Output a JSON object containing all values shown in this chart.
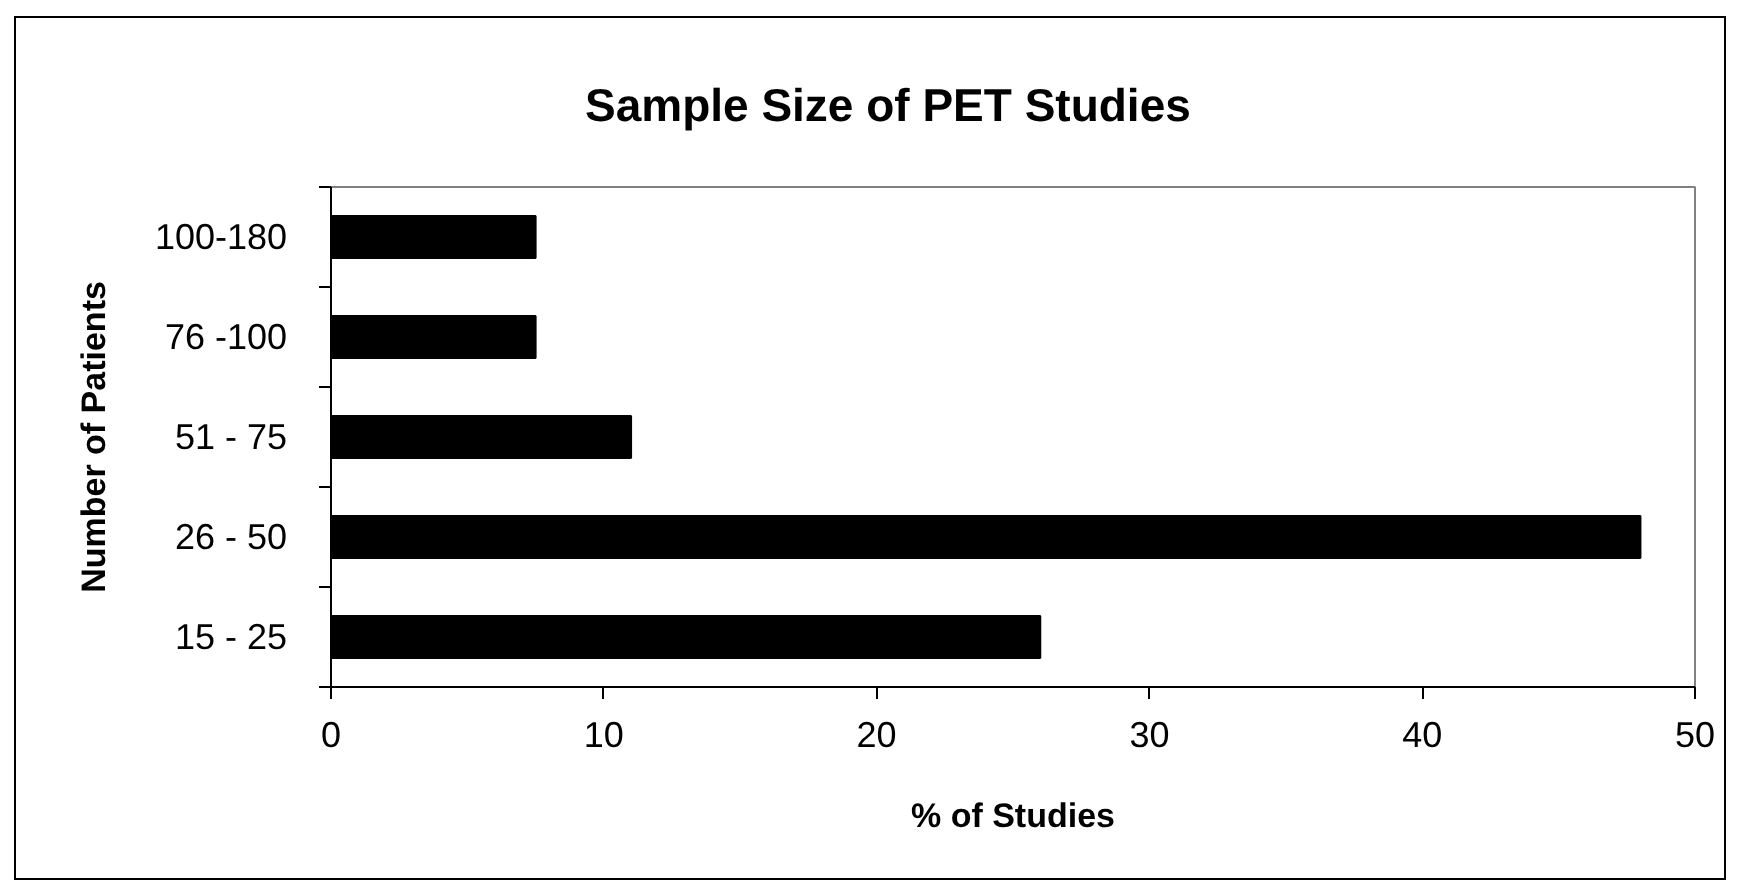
{
  "chart_data": {
    "type": "bar",
    "orientation": "horizontal",
    "title": "Sample Size of PET Studies",
    "xlabel": "% of Studies",
    "ylabel": "Number of Patients",
    "categories": [
      "100-180",
      "76 -100",
      "51 - 75",
      "26 - 50",
      "15 - 25"
    ],
    "values": [
      7.5,
      7.5,
      11,
      48,
      26
    ],
    "color": "#000000",
    "xlim": [
      0,
      50
    ],
    "xticks": [
      0,
      10,
      20,
      30,
      40,
      50
    ],
    "grid": false
  }
}
